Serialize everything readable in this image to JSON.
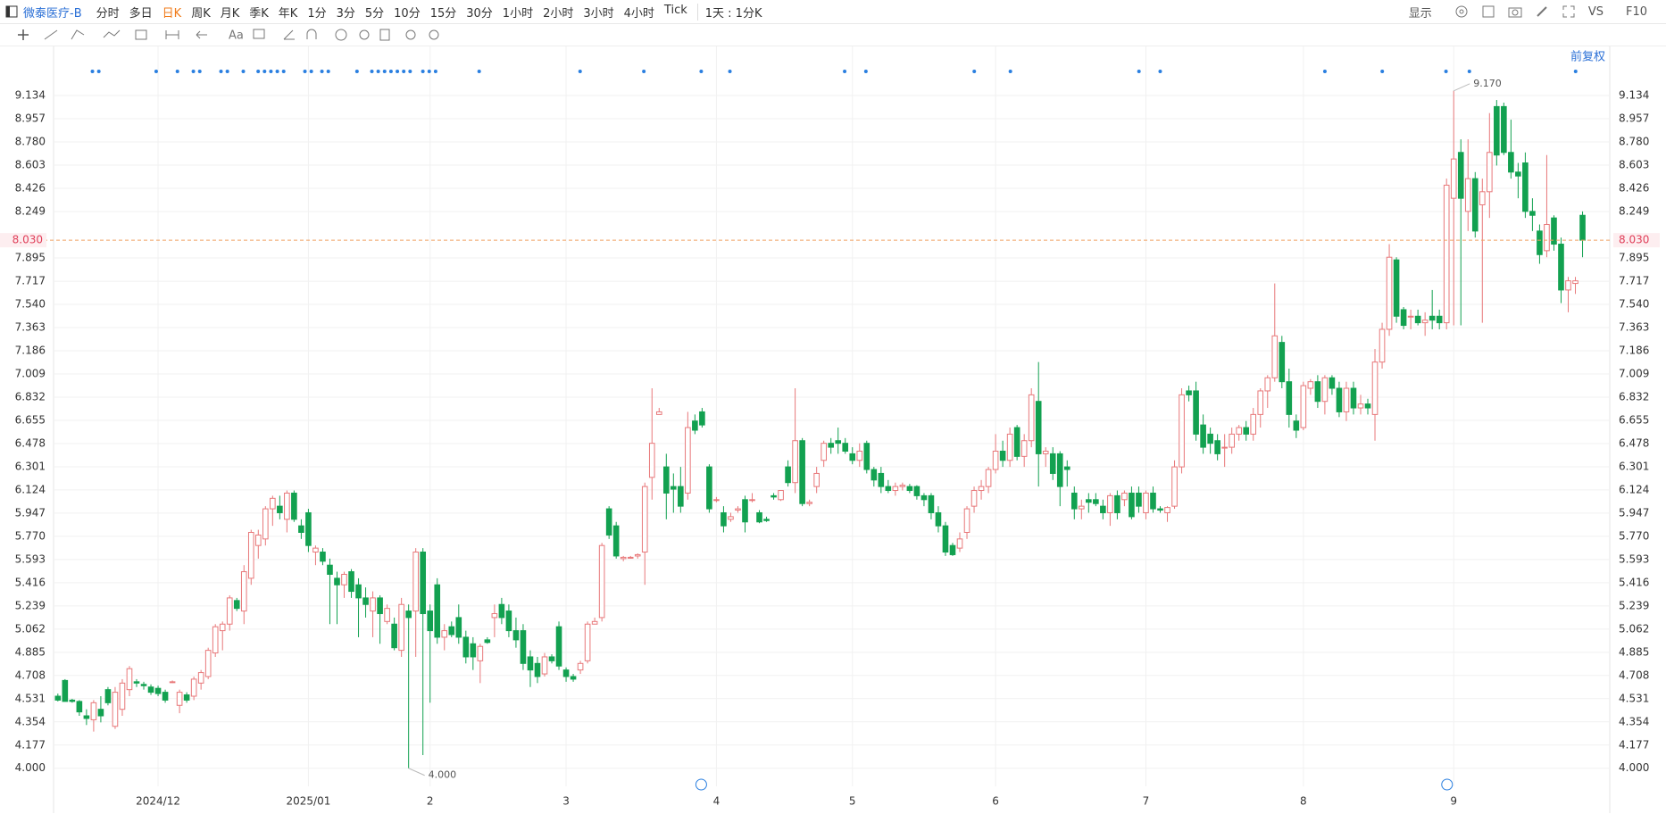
{
  "toolbar": {
    "symbol": "微泰医疗-B",
    "periods": [
      "分时",
      "多日",
      "日K",
      "周K",
      "月K",
      "季K",
      "年K",
      "1分",
      "3分",
      "5分",
      "10分",
      "15分",
      "30分",
      "1小时",
      "2小时",
      "3小时",
      "4小时",
      "Tick"
    ],
    "interval": "1天 : 1分K",
    "display": "显示",
    "vs": "VS",
    "f10": "F10",
    "text_tool": "Aa"
  },
  "chart_data": {
    "type": "candlestick",
    "adjust_label": "前复权",
    "up_color": "#e8787a",
    "down_color": "#12a150",
    "grid": true,
    "xlim": [
      -0.6,
      216.8
    ],
    "ylim": [
      3.862,
      9.475
    ],
    "xticks": [
      {
        "value": 14,
        "label": "2024/12"
      },
      {
        "value": 35,
        "label": "2025/01"
      },
      {
        "value": 52,
        "label": "2"
      },
      {
        "value": 71,
        "label": "3"
      },
      {
        "value": 92,
        "label": "4"
      },
      {
        "value": 111,
        "label": "5"
      },
      {
        "value": 131,
        "label": "6"
      },
      {
        "value": 152,
        "label": "7"
      },
      {
        "value": 174,
        "label": "8"
      },
      {
        "value": 195,
        "label": "9"
      }
    ],
    "yticks": [
      {
        "value": 4,
        "label": "4.000"
      },
      4.177,
      4.354,
      4.531,
      4.708,
      4.885,
      5.062,
      5.239,
      5.416,
      5.593,
      {
        "value": 5.77,
        "label": "5.770"
      },
      5.947,
      6.124,
      6.301,
      6.478,
      6.655,
      6.832,
      7.009,
      7.186,
      7.363,
      {
        "value": 7.54,
        "label": "7.540"
      },
      7.717,
      7.895,
      8.249,
      8.426,
      8.603,
      {
        "value": 8.78,
        "label": "8.780"
      },
      8.957,
      9.134
    ],
    "last_price": {
      "value": 8.03,
      "label": "8.030"
    },
    "annotations": [
      {
        "value": 9.17,
        "label": "9.170"
      },
      {
        "value": 4,
        "label": "4.000"
      }
    ],
    "candles": [
      [
        4.55,
        4.57,
        4.51,
        4.52
      ],
      [
        4.67,
        4.68,
        4.51,
        4.51
      ],
      [
        4.52,
        4.53,
        4.5,
        4.51
      ],
      [
        4.51,
        4.52,
        4.4,
        4.43
      ],
      [
        4.4,
        4.45,
        4.33,
        4.38
      ],
      [
        4.37,
        4.52,
        4.28,
        4.5
      ],
      [
        4.45,
        4.55,
        4.35,
        4.4
      ],
      [
        4.6,
        4.62,
        4.48,
        4.5
      ],
      [
        4.32,
        4.62,
        4.3,
        4.58
      ],
      [
        4.45,
        4.68,
        4.4,
        4.65
      ],
      [
        4.6,
        4.78,
        4.55,
        4.76
      ],
      [
        4.66,
        4.68,
        4.62,
        4.65
      ],
      [
        4.64,
        4.66,
        4.6,
        4.63
      ],
      [
        4.62,
        4.64,
        4.56,
        4.58
      ],
      [
        4.61,
        4.63,
        4.55,
        4.57
      ],
      [
        4.58,
        4.6,
        4.5,
        4.52
      ],
      [
        4.66,
        4.67,
        4.65,
        4.66
      ],
      [
        4.48,
        4.6,
        4.42,
        4.58
      ],
      [
        4.56,
        4.58,
        4.5,
        4.52
      ],
      [
        4.55,
        4.7,
        4.52,
        4.68
      ],
      [
        4.65,
        4.75,
        4.6,
        4.73
      ],
      [
        4.7,
        4.92,
        4.68,
        4.9
      ],
      [
        4.88,
        5.1,
        4.85,
        5.08
      ],
      [
        5.05,
        5.12,
        4.9,
        5.1
      ],
      [
        5.1,
        5.32,
        5.05,
        5.3
      ],
      [
        5.28,
        5.3,
        5.2,
        5.22
      ],
      [
        5.2,
        5.55,
        5.1,
        5.5
      ],
      [
        5.45,
        5.82,
        5.4,
        5.8
      ],
      [
        5.7,
        5.82,
        5.6,
        5.78
      ],
      [
        5.75,
        6,
        5.7,
        5.98
      ],
      [
        5.98,
        6.08,
        5.85,
        6.06
      ],
      [
        6,
        6.08,
        5.9,
        5.95
      ],
      [
        5.9,
        6.12,
        5.8,
        6.1
      ],
      [
        6.1,
        6.12,
        5.88,
        5.9
      ],
      [
        5.85,
        5.9,
        5.75,
        5.8
      ],
      [
        5.95,
        5.98,
        5.65,
        5.7
      ],
      [
        5.65,
        5.7,
        5.55,
        5.68
      ],
      [
        5.65,
        5.68,
        5.55,
        5.58
      ],
      [
        5.55,
        5.6,
        5.1,
        5.48
      ],
      [
        5.45,
        5.5,
        5.1,
        5.4
      ],
      [
        5.4,
        5.5,
        5.3,
        5.48
      ],
      [
        5.5,
        5.52,
        5.3,
        5.35
      ],
      [
        5.4,
        5.45,
        5,
        5.3
      ],
      [
        5.3,
        5.38,
        5.15,
        5.25
      ],
      [
        5.2,
        5.35,
        5,
        5.3
      ],
      [
        5.3,
        5.32,
        4.95,
        5.18
      ],
      [
        5.12,
        5.25,
        5.1,
        5.22
      ],
      [
        5.1,
        5.15,
        4.9,
        4.92
      ],
      [
        4.9,
        5.3,
        4.85,
        5.25
      ],
      [
        5.2,
        5.25,
        4,
        5.15
      ],
      [
        5.2,
        5.68,
        4.85,
        5.65
      ],
      [
        5.65,
        5.68,
        4.1,
        5.18
      ],
      [
        5.2,
        5.25,
        4.5,
        5.05
      ],
      [
        5.4,
        5.45,
        4.95,
        5
      ],
      [
        5,
        5.1,
        4.9,
        5.05
      ],
      [
        5.08,
        5.12,
        5,
        5.02
      ],
      [
        5.15,
        5.25,
        4.95,
        5
      ],
      [
        5,
        5.05,
        4.8,
        4.85
      ],
      [
        4.95,
        5,
        4.75,
        4.85
      ],
      [
        4.82,
        4.95,
        4.65,
        4.93
      ],
      [
        4.98,
        5,
        4.95,
        4.96
      ],
      [
        5.15,
        5.25,
        5,
        5.18
      ],
      [
        5.25,
        5.3,
        5.1,
        5.15
      ],
      [
        5.2,
        5.25,
        5,
        5.05
      ],
      [
        5.05,
        5.15,
        4.92,
        4.98
      ],
      [
        5.05,
        5.1,
        4.75,
        4.8
      ],
      [
        4.85,
        4.9,
        4.62,
        4.75
      ],
      [
        4.8,
        4.85,
        4.65,
        4.7
      ],
      [
        4.72,
        4.88,
        4.7,
        4.85
      ],
      [
        4.85,
        4.87,
        4.8,
        4.82
      ],
      [
        5.08,
        5.12,
        4.75,
        4.78
      ],
      [
        4.75,
        4.77,
        4.66,
        4.7
      ],
      [
        4.7,
        4.72,
        4.66,
        4.68
      ],
      [
        4.75,
        4.82,
        4.72,
        4.8
      ],
      [
        4.82,
        5.12,
        4.8,
        5.1
      ],
      [
        5.1,
        5.15,
        5.1,
        5.12
      ],
      [
        5.15,
        5.72,
        5.12,
        5.7
      ],
      [
        5.98,
        6,
        5.75,
        5.78
      ],
      [
        5.85,
        5.88,
        5.6,
        5.62
      ],
      [
        5.6,
        5.62,
        5.58,
        5.61
      ],
      [
        5.61,
        5.62,
        5.6,
        5.61
      ],
      [
        5.62,
        5.64,
        5.6,
        5.63
      ],
      [
        5.65,
        6.18,
        5.4,
        6.15
      ],
      [
        6.22,
        6.9,
        6.05,
        6.48
      ],
      [
        6.7,
        6.75,
        6.7,
        6.72
      ],
      [
        6.3,
        6.4,
        5.9,
        6.1
      ],
      [
        6.15,
        6.25,
        5.95,
        6.13
      ],
      [
        6.15,
        6.3,
        5.95,
        6
      ],
      [
        6.1,
        6.72,
        6.05,
        6.6
      ],
      [
        6.65,
        6.7,
        6.55,
        6.58
      ],
      [
        6.72,
        6.75,
        6.6,
        6.62
      ],
      [
        6.3,
        6.32,
        5.95,
        5.98
      ],
      [
        6.05,
        6.07,
        6.03,
        6.05
      ],
      [
        5.95,
        6,
        5.8,
        5.85
      ],
      [
        5.9,
        5.95,
        5.88,
        5.92
      ],
      [
        5.97,
        6,
        5.95,
        5.98
      ],
      [
        6.05,
        6.08,
        5.8,
        5.88
      ],
      [
        6.05,
        6.1,
        6.03,
        6.05
      ],
      [
        5.95,
        5.97,
        5.87,
        5.88
      ],
      [
        5.9,
        5.92,
        5.88,
        5.89
      ],
      [
        6.08,
        6.1,
        6.05,
        6.07
      ],
      [
        6.05,
        6.12,
        6.04,
        6.12
      ],
      [
        6.3,
        6.35,
        6.15,
        6.18
      ],
      [
        6.18,
        6.9,
        6.1,
        6.5
      ],
      [
        6.5,
        6.52,
        6,
        6.02
      ],
      [
        6.02,
        6.05,
        6,
        6.03
      ],
      [
        6.15,
        6.3,
        6.1,
        6.25
      ],
      [
        6.35,
        6.5,
        6.3,
        6.48
      ],
      [
        6.48,
        6.52,
        6.4,
        6.45
      ],
      [
        6.5,
        6.6,
        6.4,
        6.48
      ],
      [
        6.48,
        6.52,
        6.4,
        6.42
      ],
      [
        6.4,
        6.45,
        6.32,
        6.35
      ],
      [
        6.35,
        6.48,
        6.3,
        6.42
      ],
      [
        6.48,
        6.5,
        6.25,
        6.28
      ],
      [
        6.28,
        6.3,
        6.15,
        6.2
      ],
      [
        6.25,
        6.3,
        6.1,
        6.15
      ],
      [
        6.15,
        6.2,
        6.1,
        6.12
      ],
      [
        6.12,
        6.18,
        6.08,
        6.15
      ],
      [
        6.15,
        6.18,
        6.12,
        6.16
      ],
      [
        6.15,
        6.17,
        6.1,
        6.12
      ],
      [
        6.15,
        6.16,
        6.05,
        6.08
      ],
      [
        6.08,
        6.1,
        6,
        6.05
      ],
      [
        6.08,
        6.1,
        5.9,
        5.95
      ],
      [
        5.95,
        6,
        5.8,
        5.85
      ],
      [
        5.85,
        5.88,
        5.62,
        5.65
      ],
      [
        5.7,
        5.72,
        5.62,
        5.63
      ],
      [
        5.68,
        5.8,
        5.65,
        5.75
      ],
      [
        5.8,
        6,
        5.75,
        5.98
      ],
      [
        6,
        6.15,
        5.95,
        6.12
      ],
      [
        6.12,
        6.2,
        6.05,
        6.15
      ],
      [
        6.15,
        6.3,
        6.1,
        6.28
      ],
      [
        6.28,
        6.55,
        6.25,
        6.42
      ],
      [
        6.42,
        6.5,
        6.3,
        6.35
      ],
      [
        6.35,
        6.6,
        6.3,
        6.55
      ],
      [
        6.6,
        6.62,
        6.35,
        6.38
      ],
      [
        6.38,
        6.55,
        6.3,
        6.5
      ],
      [
        6.5,
        6.9,
        6.45,
        6.85
      ],
      [
        6.8,
        7.1,
        6.15,
        6.4
      ],
      [
        6.4,
        6.45,
        6.3,
        6.42
      ],
      [
        6.4,
        6.45,
        6.2,
        6.25
      ],
      [
        6.4,
        6.42,
        6,
        6.15
      ],
      [
        6.3,
        6.35,
        6.15,
        6.28
      ],
      [
        6.1,
        6.15,
        5.9,
        5.98
      ],
      [
        5.98,
        6.05,
        5.9,
        6
      ],
      [
        6.05,
        6.1,
        5.95,
        6.03
      ],
      [
        6.05,
        6.1,
        6,
        6.02
      ],
      [
        6,
        6.05,
        5.9,
        5.95
      ],
      [
        5.95,
        6.1,
        5.85,
        6.08
      ],
      [
        6.08,
        6.12,
        5.9,
        5.95
      ],
      [
        6.05,
        6.12,
        6,
        6.1
      ],
      [
        6.1,
        6.15,
        5.9,
        5.92
      ],
      [
        6.1,
        6.15,
        5.95,
        6
      ],
      [
        5.95,
        6.12,
        5.9,
        6.1
      ],
      [
        6.1,
        6.15,
        5.95,
        5.98
      ],
      [
        5.98,
        6,
        5.95,
        5.97
      ],
      [
        5.95,
        6,
        5.88,
        5.99
      ],
      [
        6,
        6.35,
        5.98,
        6.3
      ],
      [
        6.3,
        6.9,
        6.25,
        6.85
      ],
      [
        6.88,
        6.92,
        6.8,
        6.85
      ],
      [
        6.88,
        6.95,
        6.5,
        6.55
      ],
      [
        6.62,
        6.7,
        6.4,
        6.45
      ],
      [
        6.55,
        6.6,
        6.4,
        6.48
      ],
      [
        6.5,
        6.55,
        6.35,
        6.4
      ],
      [
        6.45,
        6.55,
        6.3,
        6.45
      ],
      [
        6.45,
        6.6,
        6.4,
        6.55
      ],
      [
        6.55,
        6.62,
        6.5,
        6.6
      ],
      [
        6.6,
        6.65,
        6.5,
        6.55
      ],
      [
        6.55,
        6.75,
        6.5,
        6.7
      ],
      [
        6.7,
        6.9,
        6.6,
        6.88
      ],
      [
        6.88,
        7,
        6.75,
        6.98
      ],
      [
        6.98,
        7.7,
        6.95,
        7.3
      ],
      [
        7.25,
        7.3,
        6.9,
        6.95
      ],
      [
        6.95,
        7.05,
        6.6,
        6.7
      ],
      [
        6.65,
        6.7,
        6.52,
        6.58
      ],
      [
        6.6,
        6.95,
        6.58,
        6.92
      ],
      [
        6.9,
        6.97,
        6.85,
        6.95
      ],
      [
        6.95,
        7,
        6.75,
        6.8
      ],
      [
        6.8,
        7,
        6.7,
        6.98
      ],
      [
        6.98,
        7,
        6.85,
        6.9
      ],
      [
        6.9,
        6.95,
        6.68,
        6.72
      ],
      [
        6.72,
        6.95,
        6.65,
        6.9
      ],
      [
        6.9,
        6.95,
        6.7,
        6.75
      ],
      [
        6.75,
        6.85,
        6.7,
        6.78
      ],
      [
        6.78,
        6.82,
        6.7,
        6.75
      ],
      [
        6.7,
        7.2,
        6.5,
        7.1
      ],
      [
        7.1,
        7.4,
        7.05,
        7.35
      ],
      [
        7.35,
        8,
        7.3,
        7.9
      ],
      [
        7.88,
        7.9,
        7.4,
        7.45
      ],
      [
        7.5,
        7.52,
        7.35,
        7.38
      ],
      [
        7.45,
        7.5,
        7.35,
        7.45
      ],
      [
        7.45,
        7.5,
        7.38,
        7.4
      ],
      [
        7.4,
        7.48,
        7.3,
        7.42
      ],
      [
        7.45,
        7.65,
        7.35,
        7.42
      ],
      [
        7.45,
        7.5,
        7.35,
        7.4
      ],
      [
        7.4,
        8.5,
        7.35,
        8.45
      ],
      [
        8.35,
        9.17,
        7.38,
        8.65
      ],
      [
        8.7,
        8.8,
        7.38,
        8.35
      ],
      [
        8.25,
        8.8,
        8.1,
        8.5
      ],
      [
        8.5,
        8.55,
        8.05,
        8.1
      ],
      [
        8.3,
        8.5,
        7.4,
        8.4
      ],
      [
        8.4,
        9,
        8.2,
        8.7
      ],
      [
        9.05,
        9.1,
        8.6,
        8.68
      ],
      [
        9.05,
        9.08,
        8.68,
        8.7
      ],
      [
        8.7,
        8.95,
        8.5,
        8.55
      ],
      [
        8.55,
        8.62,
        8.35,
        8.52
      ],
      [
        8.62,
        8.7,
        8.2,
        8.25
      ],
      [
        8.25,
        8.35,
        8.1,
        8.22
      ],
      [
        8.1,
        8.15,
        7.85,
        7.92
      ],
      [
        7.95,
        8.68,
        7.9,
        8.15
      ],
      [
        8.2,
        8.22,
        7.95,
        8
      ],
      [
        8,
        8.05,
        7.55,
        7.65
      ],
      [
        7.65,
        7.75,
        7.48,
        7.72
      ],
      [
        7.7,
        7.75,
        7.62,
        7.72
      ],
      [
        8.22,
        8.25,
        7.9,
        8.03
      ]
    ]
  }
}
